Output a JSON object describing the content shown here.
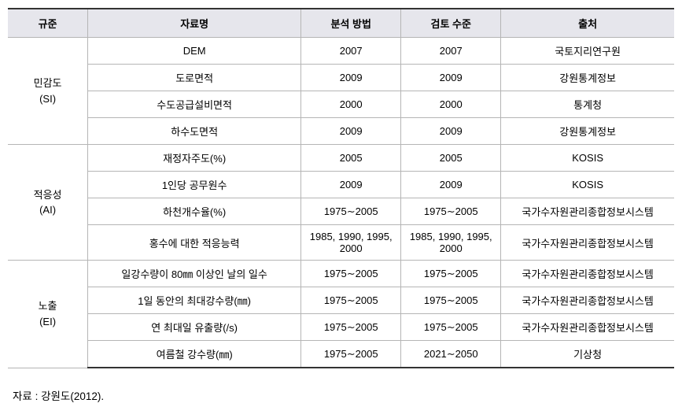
{
  "table": {
    "headers": [
      "규준",
      "자료명",
      "분석 방법",
      "검토 수준",
      "출처"
    ],
    "groups": [
      {
        "label_line1": "민감도",
        "label_line2": "(SI)",
        "rows": [
          {
            "name": "DEM",
            "method": "2007",
            "level": "2007",
            "src": "국토지리연구원"
          },
          {
            "name": "도로면적",
            "method": "2009",
            "level": "2009",
            "src": "강원통계정보"
          },
          {
            "name": "수도공급설비면적",
            "method": "2000",
            "level": "2000",
            "src": "통계청"
          },
          {
            "name": "하수도면적",
            "method": "2009",
            "level": "2009",
            "src": "강원통계정보"
          }
        ]
      },
      {
        "label_line1": "적응성",
        "label_line2": "(AI)",
        "rows": [
          {
            "name": "재정자주도(%)",
            "method": "2005",
            "level": "2005",
            "src": "KOSIS"
          },
          {
            "name": "1인당 공무원수",
            "method": "2009",
            "level": "2009",
            "src": "KOSIS"
          },
          {
            "name": "하천개수율(%)",
            "method": "1975∼2005",
            "level": "1975∼2005",
            "src": "국가수자원관리종합정보시스템"
          },
          {
            "name": "홍수에 대한 적응능력",
            "method": "1985, 1990, 1995, 2000",
            "level": "1985, 1990, 1995, 2000",
            "src": "국가수자원관리종합정보시스템"
          }
        ]
      },
      {
        "label_line1": "노출",
        "label_line2": "(EI)",
        "rows": [
          {
            "name": "일강수량이 80㎜ 이상인 날의 일수",
            "method": "1975∼2005",
            "level": "1975∼2005",
            "src": "국가수자원관리종합정보시스템"
          },
          {
            "name": "1일 동안의 최대강수량(㎜)",
            "method": "1975∼2005",
            "level": "1975∼2005",
            "src": "국가수자원관리종합정보시스템"
          },
          {
            "name": "연 최대일 유출량(/s)",
            "method": "1975∼2005",
            "level": "1975∼2005",
            "src": "국가수자원관리종합정보시스템"
          },
          {
            "name": "여름철 강수량(㎜)",
            "method": "1975∼2005",
            "level": "2021∼2050",
            "src": "기상청"
          }
        ]
      }
    ]
  },
  "colwidths": {
    "c0": "12%",
    "c1": "32%",
    "c2": "15%",
    "c3": "15%",
    "c4": "26%"
  },
  "source_line": "자료 : 강원도(2012)."
}
